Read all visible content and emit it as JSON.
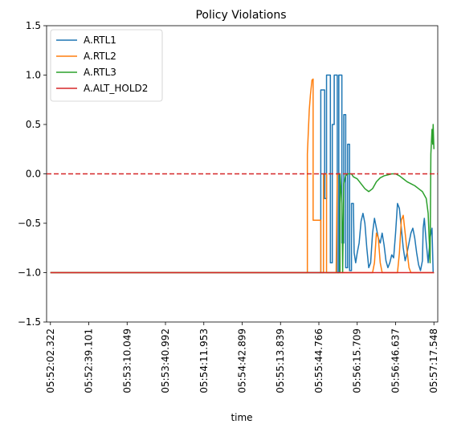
{
  "chart_data": {
    "type": "line",
    "title": "Policy Violations",
    "xlabel": "time",
    "ylabel": "",
    "ylim": [
      -1.5,
      1.5
    ],
    "yticks": [
      -1.5,
      -1.0,
      -0.5,
      0.0,
      0.5,
      1.0,
      1.5
    ],
    "ytick_labels": [
      "−1.5",
      "−1.0",
      "−0.5",
      "0.0",
      "0.5",
      "1.0",
      "1.5"
    ],
    "xlim": [
      -0.1,
      10.1
    ],
    "xtick_labels": [
      "05:52:02.322",
      "05:52:39.101",
      "05:53:10.049",
      "05:53:40.992",
      "05:54:11.953",
      "05:54:42.899",
      "05:55:13.839",
      "05:55:44.766",
      "05:56:15.709",
      "05:56:46.637",
      "05:57:17.548"
    ],
    "grid": false,
    "legend_position": "upper-left",
    "reference_line": {
      "y": 0.0,
      "color": "#d62728",
      "style": "dashed"
    },
    "series": [
      {
        "name": "A.RTL1",
        "color": "#1f77b4",
        "points": [
          [
            0,
            -1.0
          ],
          [
            7.0,
            -1.0
          ],
          [
            7.05,
            -1.0
          ],
          [
            7.05,
            0.85
          ],
          [
            7.15,
            0.85
          ],
          [
            7.15,
            -0.25
          ],
          [
            7.2,
            -0.25
          ],
          [
            7.2,
            1.0
          ],
          [
            7.3,
            1.0
          ],
          [
            7.3,
            -0.9
          ],
          [
            7.35,
            -0.9
          ],
          [
            7.35,
            0.5
          ],
          [
            7.4,
            0.5
          ],
          [
            7.4,
            1.0
          ],
          [
            7.48,
            1.0
          ],
          [
            7.48,
            -1.0
          ],
          [
            7.52,
            -1.0
          ],
          [
            7.52,
            1.0
          ],
          [
            7.6,
            1.0
          ],
          [
            7.6,
            -0.7
          ],
          [
            7.65,
            -0.7
          ],
          [
            7.65,
            0.6
          ],
          [
            7.7,
            0.6
          ],
          [
            7.7,
            -0.95
          ],
          [
            7.75,
            -0.95
          ],
          [
            7.75,
            0.3
          ],
          [
            7.8,
            0.3
          ],
          [
            7.8,
            -0.98
          ],
          [
            7.85,
            -0.98
          ],
          [
            7.85,
            -0.3
          ],
          [
            7.9,
            -0.3
          ],
          [
            7.92,
            -0.8
          ],
          [
            7.96,
            -0.9
          ],
          [
            8.0,
            -0.8
          ],
          [
            8.05,
            -0.7
          ],
          [
            8.1,
            -0.48
          ],
          [
            8.15,
            -0.4
          ],
          [
            8.2,
            -0.5
          ],
          [
            8.25,
            -0.75
          ],
          [
            8.3,
            -0.95
          ],
          [
            8.35,
            -0.9
          ],
          [
            8.4,
            -0.6
          ],
          [
            8.45,
            -0.45
          ],
          [
            8.5,
            -0.55
          ],
          [
            8.55,
            -0.65
          ],
          [
            8.6,
            -0.7
          ],
          [
            8.65,
            -0.6
          ],
          [
            8.7,
            -0.72
          ],
          [
            8.75,
            -0.88
          ],
          [
            8.8,
            -0.95
          ],
          [
            8.85,
            -0.9
          ],
          [
            8.9,
            -0.82
          ],
          [
            8.95,
            -0.85
          ],
          [
            9.0,
            -0.6
          ],
          [
            9.05,
            -0.3
          ],
          [
            9.1,
            -0.35
          ],
          [
            9.15,
            -0.55
          ],
          [
            9.2,
            -0.75
          ],
          [
            9.25,
            -0.88
          ],
          [
            9.3,
            -0.8
          ],
          [
            9.35,
            -0.7
          ],
          [
            9.4,
            -0.6
          ],
          [
            9.45,
            -0.55
          ],
          [
            9.5,
            -0.65
          ],
          [
            9.55,
            -0.8
          ],
          [
            9.6,
            -0.92
          ],
          [
            9.65,
            -0.98
          ],
          [
            9.7,
            -0.88
          ],
          [
            9.72,
            -0.55
          ],
          [
            9.75,
            -0.45
          ],
          [
            9.8,
            -0.7
          ],
          [
            9.85,
            -0.9
          ],
          [
            9.9,
            -0.65
          ],
          [
            9.95,
            -0.55
          ],
          [
            9.98,
            -1.0
          ],
          [
            10.0,
            -1.0
          ]
        ]
      },
      {
        "name": "A.RTL2",
        "color": "#ff7f0e",
        "points": [
          [
            0,
            -1.0
          ],
          [
            6.7,
            -1.0
          ],
          [
            6.7,
            0.2
          ],
          [
            6.75,
            0.65
          ],
          [
            6.78,
            0.8
          ],
          [
            6.82,
            0.95
          ],
          [
            6.85,
            0.96
          ],
          [
            6.85,
            -0.47
          ],
          [
            6.9,
            -0.47
          ],
          [
            6.9,
            -0.47
          ],
          [
            7.05,
            -0.47
          ],
          [
            7.05,
            -1.0
          ],
          [
            7.12,
            -1.0
          ],
          [
            7.12,
            0.0
          ],
          [
            7.2,
            0.0
          ],
          [
            7.2,
            -1.0
          ],
          [
            7.45,
            -1.0
          ],
          [
            7.48,
            0.0
          ],
          [
            7.55,
            0.0
          ],
          [
            7.55,
            -1.0
          ],
          [
            8.4,
            -1.0
          ],
          [
            8.45,
            -0.9
          ],
          [
            8.5,
            -0.6
          ],
          [
            8.55,
            -0.65
          ],
          [
            8.6,
            -0.9
          ],
          [
            8.65,
            -1.0
          ],
          [
            9.05,
            -1.0
          ],
          [
            9.1,
            -0.8
          ],
          [
            9.15,
            -0.47
          ],
          [
            9.2,
            -0.42
          ],
          [
            9.25,
            -0.6
          ],
          [
            9.3,
            -0.78
          ],
          [
            9.35,
            -0.95
          ],
          [
            9.4,
            -1.0
          ],
          [
            10.0,
            -1.0
          ]
        ]
      },
      {
        "name": "A.RTL3",
        "color": "#2ca02c",
        "points": [
          [
            0,
            -1.0
          ],
          [
            7.55,
            -1.0
          ],
          [
            7.55,
            0.0
          ],
          [
            7.6,
            -0.3
          ],
          [
            7.62,
            -1.0
          ],
          [
            7.65,
            -0.1
          ],
          [
            7.7,
            -0.02
          ],
          [
            7.75,
            0.0
          ],
          [
            7.8,
            0.0
          ],
          [
            7.85,
            0.0
          ],
          [
            7.9,
            -0.03
          ],
          [
            8.0,
            -0.05
          ],
          [
            8.1,
            -0.1
          ],
          [
            8.2,
            -0.15
          ],
          [
            8.3,
            -0.18
          ],
          [
            8.4,
            -0.15
          ],
          [
            8.5,
            -0.08
          ],
          [
            8.6,
            -0.04
          ],
          [
            8.7,
            -0.02
          ],
          [
            8.8,
            -0.01
          ],
          [
            8.9,
            0.0
          ],
          [
            9.0,
            0.0
          ],
          [
            9.1,
            -0.02
          ],
          [
            9.2,
            -0.05
          ],
          [
            9.3,
            -0.08
          ],
          [
            9.4,
            -0.1
          ],
          [
            9.5,
            -0.12
          ],
          [
            9.6,
            -0.15
          ],
          [
            9.7,
            -0.18
          ],
          [
            9.8,
            -0.25
          ],
          [
            9.85,
            -0.4
          ],
          [
            9.88,
            -0.7
          ],
          [
            9.9,
            -0.9
          ],
          [
            9.92,
            0.2
          ],
          [
            9.95,
            0.45
          ],
          [
            9.97,
            0.3
          ],
          [
            9.98,
            0.5
          ],
          [
            10.0,
            0.25
          ]
        ]
      },
      {
        "name": "A.ALT_HOLD2",
        "color": "#d62728",
        "points": [
          [
            0,
            -1.0
          ],
          [
            10.0,
            -1.0
          ]
        ]
      }
    ]
  }
}
